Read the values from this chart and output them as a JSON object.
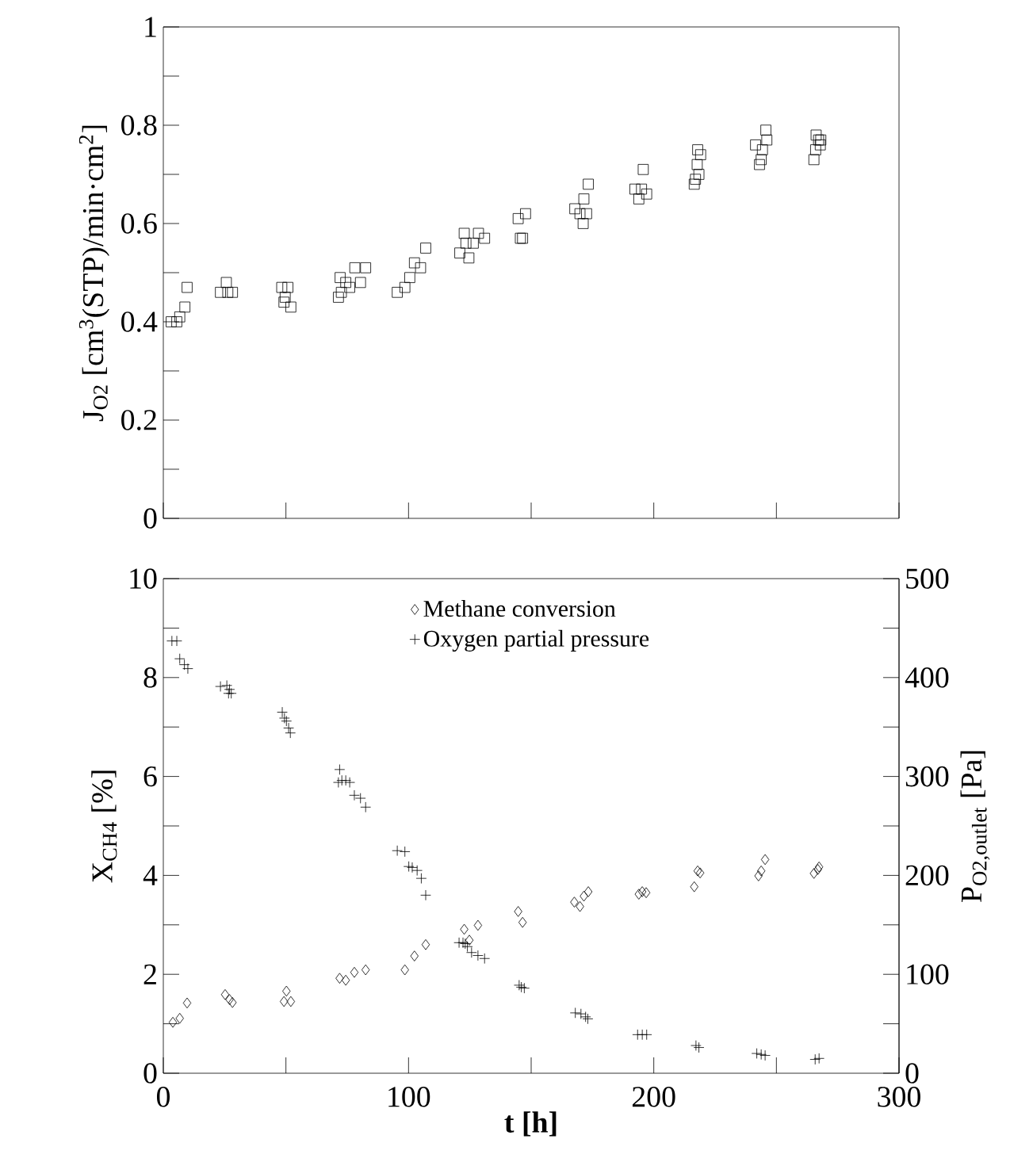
{
  "chart_data": [
    {
      "type": "scatter",
      "ylabel": "J$_{O2}$ [cm$^{3}$(STP)/min·cm$^{2}$]",
      "xlim": [
        0,
        300
      ],
      "xticks": [
        0,
        {
          "value": 50,
          "label": null
        },
        100,
        {
          "value": 150,
          "label": null
        },
        200,
        {
          "value": 250,
          "label": null
        },
        300
      ],
      "ylim": [
        0,
        1
      ],
      "yticks": [
        0,
        {
          "value": 0.1,
          "label": null
        },
        0.2,
        {
          "value": 0.3,
          "label": null
        },
        0.4,
        {
          "value": 0.5,
          "label": null
        },
        0.6,
        {
          "value": 0.7,
          "label": null
        },
        0.8,
        {
          "value": 0.9,
          "label": null
        },
        1
      ],
      "tick_labels": "y",
      "marker": "square",
      "series": [
        {
          "color": "#000000",
          "x": [
            3.2,
            5.5,
            6.7,
            8.8,
            9.7,
            23.3,
            25.7,
            26.3,
            28.2,
            48.3,
            50.8,
            49.7,
            49.2,
            52,
            71.4,
            72.1,
            72.6,
            74.4,
            76,
            78.1,
            80.4,
            82.5,
            95.4,
            98.5,
            100.5,
            102.4,
            104.9,
            107,
            120.9,
            122.7,
            123.4,
            124.6,
            126.4,
            128.5,
            131,
            144.7,
            147.7,
            145.6,
            146.5,
            167.8,
            169.9,
            171.5,
            171.2,
            172.6,
            173.3,
            192.3,
            193.9,
            195,
            195.7,
            197.1,
            216.5,
            217,
            218.4,
            217.7,
            217.9,
            219.1,
            241.5,
            243.1,
            243.8,
            244.3,
            245.7,
            246.1,
            265.3,
            266,
            266.2,
            267.2,
            267.9,
            268.1
          ],
          "values": [
            0.4,
            0.4,
            0.41,
            0.43,
            0.47,
            0.46,
            0.48,
            0.46,
            0.46,
            0.47,
            0.47,
            0.45,
            0.44,
            0.43,
            0.45,
            0.49,
            0.46,
            0.48,
            0.47,
            0.51,
            0.48,
            0.51,
            0.46,
            0.47,
            0.49,
            0.52,
            0.51,
            0.55,
            0.54,
            0.58,
            0.56,
            0.53,
            0.56,
            0.58,
            0.57,
            0.61,
            0.62,
            0.57,
            0.57,
            0.63,
            0.62,
            0.65,
            0.6,
            0.62,
            0.68,
            0.67,
            0.65,
            0.67,
            0.71,
            0.66,
            0.68,
            0.69,
            0.7,
            0.72,
            0.75,
            0.74,
            0.76,
            0.72,
            0.73,
            0.75,
            0.79,
            0.77,
            0.73,
            0.75,
            0.78,
            0.77,
            0.76,
            0.77
          ]
        }
      ]
    },
    {
      "type": "scatter",
      "xlabel": "t [h]",
      "ylabel": "X$_{CH4}$ [%]",
      "y2label": "P$_{O2,outlet}$ [Pa]",
      "xlim": [
        0,
        300
      ],
      "xticks": [
        0,
        {
          "value": 50,
          "label": null
        },
        100,
        {
          "value": 150,
          "label": null
        },
        200,
        {
          "value": 250,
          "label": null
        },
        300
      ],
      "ylim": [
        0,
        10
      ],
      "yticks": [
        0,
        {
          "value": 1,
          "label": null
        },
        2,
        {
          "value": 3,
          "label": null
        },
        4,
        {
          "value": 5,
          "label": null
        },
        6,
        {
          "value": 7,
          "label": null
        },
        8,
        {
          "value": 9,
          "label": null
        },
        10
      ],
      "y2lim": [
        0,
        500
      ],
      "y2ticks": [
        0,
        {
          "value": 50,
          "label": null
        },
        100,
        {
          "value": 150,
          "label": null
        },
        200,
        {
          "value": 250,
          "label": null
        },
        300,
        {
          "value": 350,
          "label": null
        },
        400,
        {
          "value": 450,
          "label": null
        },
        500
      ],
      "legend": "top",
      "series": [
        {
          "name": "Methane conversion",
          "color": "#000000",
          "marker": "diamond",
          "x": [
            3.9,
            6.7,
            9.7,
            25.2,
            27,
            28.2,
            50.2,
            49.2,
            52,
            71.9,
            74.4,
            77.9,
            82.5,
            98.5,
            102.4,
            107,
            122.7,
            124.8,
            128.3,
            144.7,
            146.5,
            167.6,
            169.9,
            171.5,
            173.3,
            193.9,
            195.3,
            196.9,
            216.5,
            217.9,
            218.9,
            242.7,
            243.8,
            245.4,
            265.3,
            266.9,
            267.4
          ],
          "values": [
            1.03,
            1.11,
            1.42,
            1.59,
            1.49,
            1.43,
            1.66,
            1.45,
            1.45,
            1.92,
            1.88,
            2.04,
            2.09,
            2.09,
            2.37,
            2.6,
            2.91,
            2.69,
            2.99,
            3.27,
            3.05,
            3.46,
            3.37,
            3.58,
            3.67,
            3.62,
            3.67,
            3.65,
            3.77,
            4.09,
            4.05,
            3.99,
            4.09,
            4.32,
            4.04,
            4.12,
            4.17
          ]
        },
        {
          "name": "Oxygen partial pressure",
          "color": "#000000",
          "marker": "cross",
          "axis": "y2",
          "x": [
            3.5,
            5.5,
            6.7,
            8.6,
            10,
            23.3,
            25.9,
            26.6,
            27.7,
            27,
            48.5,
            49.4,
            50.2,
            51.1,
            51.8,
            71.9,
            71.4,
            72.8,
            74.4,
            76,
            77.9,
            80.4,
            82.5,
            95.4,
            98.5,
            100.1,
            101.5,
            103.5,
            105.2,
            107,
            120.6,
            122.2,
            123.1,
            124,
            125.7,
            128.3,
            131,
            145.1,
            146,
            147.2,
            168,
            170.3,
            172.2,
            173.1,
            193.4,
            195.3,
            197.1,
            217.2,
            218.4,
            242,
            243.8,
            245.4,
            265.8,
            267.4
          ],
          "values": [
            437,
            437,
            419,
            413,
            409,
            391,
            392,
            384,
            384,
            388,
            365,
            359,
            356,
            349,
            344,
            307,
            294,
            296,
            296,
            294,
            281,
            278,
            269,
            225,
            224,
            209,
            208,
            205,
            197,
            180,
            132,
            132,
            131,
            128,
            122,
            119,
            116,
            89,
            87,
            86,
            61,
            60,
            57,
            55,
            39,
            39,
            39,
            28,
            26,
            20,
            19,
            18,
            14,
            15
          ]
        }
      ]
    }
  ]
}
